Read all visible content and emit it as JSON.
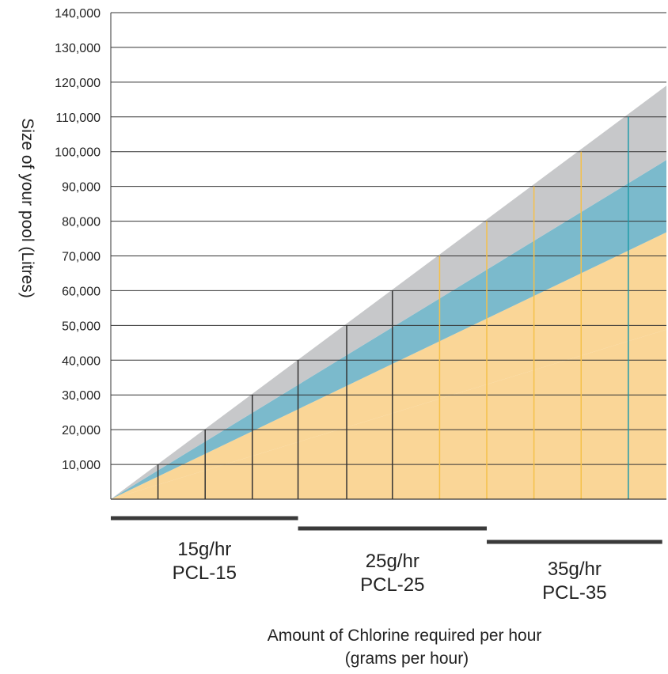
{
  "chart_data": {
    "type": "area",
    "ylabel": "Size of your pool (Litres)",
    "xlabel_lines": [
      "Amount of Chlorine required per hour",
      "(grams per hour)"
    ],
    "ylim": [
      0,
      140000
    ],
    "y_ticks": [
      10000,
      20000,
      30000,
      40000,
      50000,
      60000,
      70000,
      80000,
      90000,
      100000,
      110000,
      120000,
      130000,
      140000
    ],
    "y_tick_labels": [
      "10,000",
      "20,000",
      "30,000",
      "40,000",
      "50,000",
      "60,000",
      "70,000",
      "80,000",
      "90,000",
      "100,000",
      "110,000",
      "120,000",
      "130,000",
      "140,000"
    ],
    "grid": true,
    "xlim": [
      0,
      35
    ],
    "bands": [
      {
        "color": "#fad697",
        "lower_end": 0,
        "upper_end": 48800
      },
      {
        "color": "#fad697",
        "lower_end": 48800,
        "upper_end": 76800
      },
      {
        "color": "#7bbacc",
        "lower_end": 76800,
        "upper_end": 97600
      },
      {
        "color": "#c7c8ca",
        "lower_end": 97600,
        "upper_end": 119000
      }
    ],
    "markers": [
      {
        "x": 3.2,
        "y": 10000,
        "color": "#333333"
      },
      {
        "x": 6.4,
        "y": 20000,
        "color": "#333333"
      },
      {
        "x": 9.6,
        "y": 30000,
        "color": "#333333"
      },
      {
        "x": 12.7,
        "y": 40000,
        "color": "#333333"
      },
      {
        "x": 16.0,
        "y": 50000,
        "color": "#333333"
      },
      {
        "x": 19.1,
        "y": 60000,
        "color": "#333333"
      },
      {
        "x": 22.3,
        "y": 70000,
        "color": "#f5c04a"
      },
      {
        "x": 25.5,
        "y": 80000,
        "color": "#f5c04a"
      },
      {
        "x": 28.7,
        "y": 90000,
        "color": "#f5c04a"
      },
      {
        "x": 31.9,
        "y": 100000,
        "color": "#f5c04a"
      },
      {
        "x": 35.1,
        "y": 110000,
        "color": "#1f9aa8"
      }
    ],
    "groups": [
      {
        "rate": "15g/hr",
        "model": "PCL-15",
        "x_start": 0,
        "x_end": 12.7
      },
      {
        "rate": "25g/hr",
        "model": "PCL-25",
        "x_start": 12.7,
        "x_end": 25.5
      },
      {
        "rate": "35g/hr",
        "model": "PCL-35",
        "x_start": 25.5,
        "x_end": 37.4
      }
    ],
    "colors": {
      "grid": "#333333",
      "group_bar": "#3a3a3a",
      "text": "#222222"
    }
  }
}
